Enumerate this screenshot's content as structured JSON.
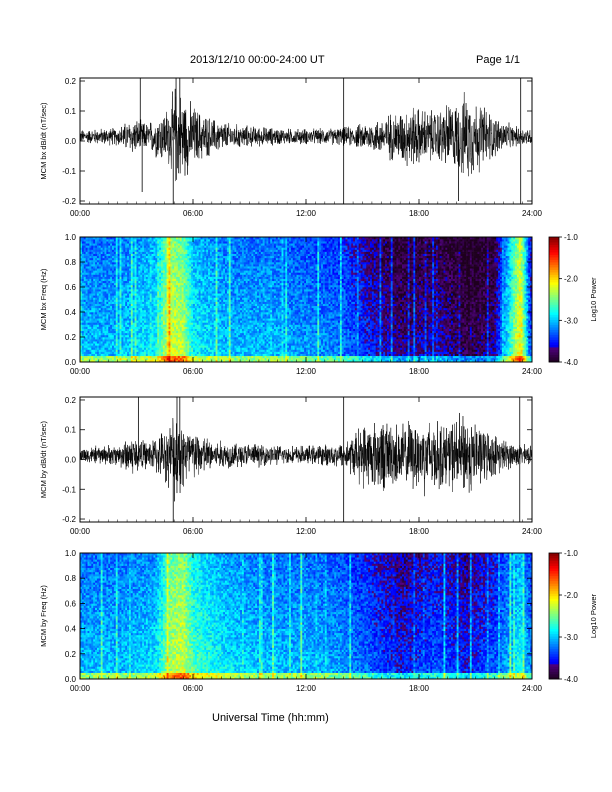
{
  "header": {
    "title": "2013/12/10   00:00-24:00 UT",
    "page": "Page 1/1"
  },
  "footer": {
    "xlabel": "Universal Time (hh:mm)"
  },
  "colors": {
    "trace": "#000000",
    "frame": "#000000",
    "background": "#ffffff"
  },
  "chart_data": [
    {
      "type": "line",
      "ylabel": "MCM bx dB/dt (nT/sec)",
      "xlabel": "",
      "x_tick_labels": [
        "00:00",
        "06:00",
        "12:00",
        "18:00",
        "24:00"
      ],
      "y_tick_labels": [
        "-0.2",
        "-0.1",
        "0.0",
        "0.1",
        "0.2"
      ],
      "y_ticks": [
        -0.2,
        -0.1,
        0.0,
        0.1,
        0.2
      ],
      "xlim_hours": [
        0,
        24
      ],
      "ylim": [
        -0.21,
        0.21
      ],
      "series": [
        {
          "x_hours": [
            0,
            1,
            2,
            2.8,
            3.2,
            3.6,
            4.2,
            4.8,
            5.0,
            5.5,
            6.0,
            6.5,
            7.0,
            8,
            9,
            10,
            11,
            12,
            13,
            14,
            14.5,
            15,
            16,
            16.5,
            17,
            17.5,
            18,
            18.5,
            19,
            19.5,
            20,
            20.5,
            21,
            21.5,
            22,
            22.5,
            23,
            23.5,
            24
          ],
          "envelope": [
            0.025,
            0.03,
            0.035,
            0.07,
            0.06,
            0.05,
            0.09,
            0.12,
            0.2,
            0.16,
            0.12,
            0.09,
            0.07,
            0.05,
            0.04,
            0.035,
            0.03,
            0.03,
            0.03,
            0.035,
            0.04,
            0.05,
            0.07,
            0.09,
            0.1,
            0.12,
            0.11,
            0.1,
            0.1,
            0.13,
            0.13,
            0.17,
            0.14,
            0.12,
            0.08,
            0.06,
            0.04,
            0.035,
            0.03
          ],
          "spikes": [
            [
              3.2,
              0.21
            ],
            [
              3.3,
              -0.17
            ],
            [
              4.95,
              -0.21
            ],
            [
              5.1,
              0.21
            ],
            [
              5.3,
              0.21
            ],
            [
              14.0,
              0.21
            ],
            [
              14.0,
              -0.21
            ],
            [
              23.4,
              0.21
            ],
            [
              23.4,
              -0.21
            ],
            [
              20.1,
              -0.2
            ]
          ]
        }
      ]
    },
    {
      "type": "heatmap",
      "ylabel": "MCM bx Freq (Hz)",
      "x_tick_labels": [
        "00:00",
        "06:00",
        "12:00",
        "18:00",
        "24:00"
      ],
      "y_tick_labels": [
        "0.0",
        "0.2",
        "0.4",
        "0.6",
        "0.8",
        "1.0"
      ],
      "y_ticks": [
        0,
        0.2,
        0.4,
        0.6,
        0.8,
        1.0
      ],
      "xlim_hours": [
        0,
        24
      ],
      "ylim": [
        0,
        1.0
      ],
      "colorbar": {
        "label": "Log10 Power",
        "tick_labels": [
          "-1.0",
          "-2.0",
          "-3.0",
          "-4.0"
        ],
        "range": [
          -4.0,
          -1.0
        ]
      },
      "activity_profile": {
        "x_hours": [
          0,
          2,
          4,
          4.8,
          5.5,
          6,
          8,
          10,
          12,
          14,
          15.5,
          17,
          19,
          20.5,
          22,
          23.4,
          24
        ],
        "level": [
          -3.0,
          -3.0,
          -2.8,
          -2.2,
          -2.3,
          -2.8,
          -3.0,
          -3.0,
          -3.1,
          -3.2,
          -3.5,
          -3.7,
          -3.6,
          -3.8,
          -3.7,
          -2.0,
          -3.6
        ]
      }
    },
    {
      "type": "line",
      "ylabel": "MCM by dB/dt (nT/sec)",
      "xlabel": "",
      "x_tick_labels": [
        "00:00",
        "06:00",
        "12:00",
        "18:00",
        "24:00"
      ],
      "y_tick_labels": [
        "-0.2",
        "-0.1",
        "0.0",
        "0.1",
        "0.2"
      ],
      "y_ticks": [
        -0.2,
        -0.1,
        0.0,
        0.1,
        0.2
      ],
      "xlim_hours": [
        0,
        24
      ],
      "ylim": [
        -0.21,
        0.21
      ],
      "series": [
        {
          "x_hours": [
            0,
            1,
            2,
            2.8,
            3.2,
            3.6,
            4.2,
            4.8,
            5.0,
            5.5,
            6.0,
            6.5,
            7.0,
            8,
            9,
            10,
            11,
            12,
            13,
            14,
            14.5,
            15,
            16,
            16.5,
            17,
            17.5,
            18,
            18.5,
            19,
            19.5,
            20,
            20.5,
            21,
            21.5,
            22,
            22.5,
            23,
            23.5,
            24
          ],
          "envelope": [
            0.03,
            0.035,
            0.04,
            0.08,
            0.06,
            0.05,
            0.08,
            0.12,
            0.18,
            0.14,
            0.1,
            0.08,
            0.06,
            0.05,
            0.045,
            0.04,
            0.035,
            0.035,
            0.04,
            0.05,
            0.08,
            0.12,
            0.14,
            0.13,
            0.12,
            0.13,
            0.14,
            0.15,
            0.13,
            0.12,
            0.15,
            0.16,
            0.13,
            0.1,
            0.08,
            0.06,
            0.05,
            0.04,
            0.035
          ],
          "spikes": [
            [
              3.1,
              0.21
            ],
            [
              4.95,
              -0.21
            ],
            [
              5.15,
              0.21
            ],
            [
              5.3,
              0.21
            ],
            [
              14.0,
              0.21
            ],
            [
              14.0,
              -0.21
            ],
            [
              23.35,
              0.21
            ],
            [
              23.35,
              -0.21
            ]
          ]
        }
      ]
    },
    {
      "type": "heatmap",
      "ylabel": "MCM by Freq (Hz)",
      "x_tick_labels": [
        "00:00",
        "06:00",
        "12:00",
        "18:00",
        "24:00"
      ],
      "y_tick_labels": [
        "0.0",
        "0.2",
        "0.4",
        "0.6",
        "0.8",
        "1.0"
      ],
      "y_ticks": [
        0,
        0.2,
        0.4,
        0.6,
        0.8,
        1.0
      ],
      "xlim_hours": [
        0,
        24
      ],
      "ylim": [
        0,
        1.0
      ],
      "colorbar": {
        "label": "Log10 Power",
        "tick_labels": [
          "-1.0",
          "-2.0",
          "-3.0",
          "-4.0"
        ],
        "range": [
          -4.0,
          -1.0
        ]
      },
      "activity_profile": {
        "x_hours": [
          0,
          2,
          4,
          4.8,
          5.5,
          6,
          8,
          10,
          12,
          14,
          15.5,
          17,
          19,
          20.5,
          22,
          23.4,
          24
        ],
        "level": [
          -3.0,
          -3.0,
          -2.9,
          -2.3,
          -2.2,
          -2.6,
          -2.9,
          -3.0,
          -3.0,
          -3.1,
          -3.3,
          -3.5,
          -3.3,
          -3.5,
          -3.3,
          -2.8,
          -3.2
        ]
      }
    }
  ]
}
